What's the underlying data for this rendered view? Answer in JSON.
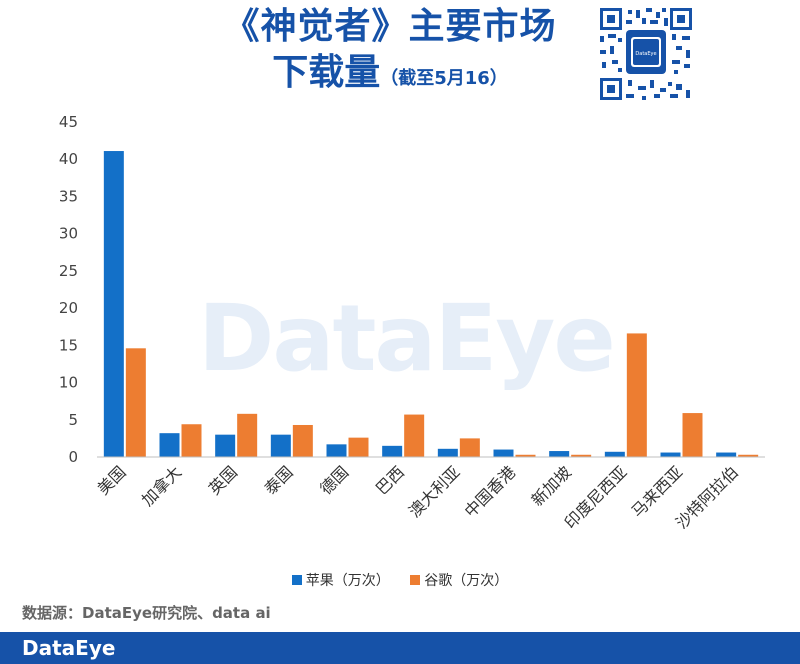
{
  "title_line1": "《神觉者》主要市场",
  "title_line2": "下载量",
  "title_note": "（截至5月16）",
  "watermark": "DataEye",
  "qr_logo_text": "DataEye",
  "source": "数据源：DataEye研究院、data ai",
  "footer_logo": "DataEye",
  "colors": {
    "apple": "#1370c8",
    "google": "#ed7d31",
    "brand": "#1652a8"
  },
  "chart_data": {
    "type": "bar",
    "categories": [
      "美国",
      "加拿大",
      "英国",
      "泰国",
      "德国",
      "巴西",
      "澳大利亚",
      "中国香港",
      "新加坡",
      "印度尼西亚",
      "马来西亚",
      "沙特阿拉伯"
    ],
    "series": [
      {
        "name": "苹果（万次）",
        "values": [
          41.1,
          3.2,
          3.0,
          3.0,
          1.7,
          1.5,
          1.1,
          1.0,
          0.8,
          0.7,
          0.6,
          0.6
        ]
      },
      {
        "name": "谷歌（万次）",
        "values": [
          14.6,
          4.4,
          5.8,
          4.3,
          2.6,
          5.7,
          2.5,
          0.3,
          0.3,
          16.6,
          5.9,
          0.3
        ]
      }
    ],
    "ylim": [
      0,
      45
    ],
    "yticks": [
      0,
      5,
      10,
      15,
      20,
      25,
      30,
      35,
      40,
      45
    ],
    "grid": false,
    "legend": "bottom"
  }
}
